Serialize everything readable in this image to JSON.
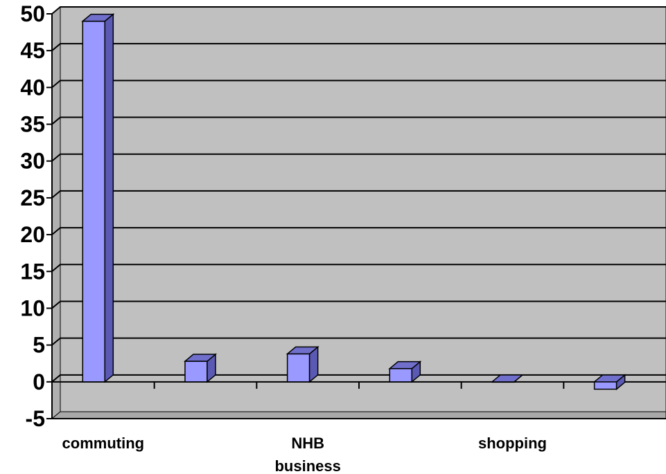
{
  "chart_data": {
    "type": "bar",
    "style": "3d-column",
    "categories": [
      "commuting",
      "",
      "NHB business",
      "",
      "shopping",
      ""
    ],
    "category_label_lines": [
      [
        "commuting"
      ],
      [],
      [
        "NHB",
        "business"
      ],
      [],
      [
        "shopping"
      ],
      []
    ],
    "values": [
      49,
      2.8,
      3.8,
      1.8,
      0,
      -1
    ],
    "ylim": [
      -5,
      50
    ],
    "yticks": [
      50,
      45,
      40,
      35,
      30,
      25,
      20,
      15,
      10,
      5,
      0,
      -5
    ],
    "grid": true,
    "legend": "none",
    "colors": {
      "bar_front": "#9999ff",
      "bar_side": "#5a5ab4",
      "bar_top": "#7070cc",
      "wall": "#c0c0c0",
      "floor": "#a8a8a8",
      "gridline": "#000000"
    }
  }
}
